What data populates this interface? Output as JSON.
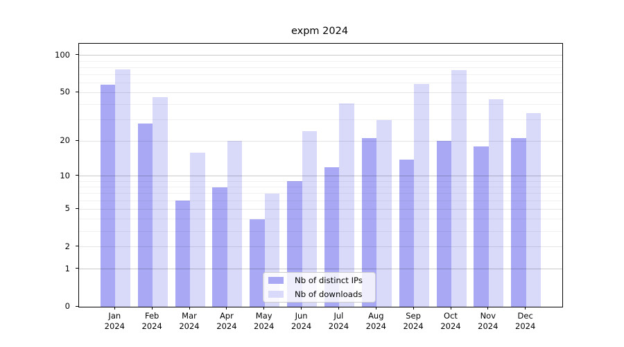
{
  "chart_data": {
    "type": "bar",
    "title": "expm 2024",
    "categories": [
      "Jan",
      "Feb",
      "Mar",
      "Apr",
      "May",
      "Jun",
      "Jul",
      "Aug",
      "Sep",
      "Oct",
      "Nov",
      "Dec"
    ],
    "xlabel_year": "2024",
    "series": [
      {
        "name": "Nb of distinct IPs",
        "color": "#a8a8f5",
        "values": [
          58,
          28,
          6,
          8,
          4,
          9,
          12,
          21,
          14,
          20,
          18,
          21
        ]
      },
      {
        "name": "Nb of downloads",
        "color": "#d9d9fa",
        "values": [
          77,
          46,
          16,
          20,
          7,
          24,
          41,
          30,
          59,
          76,
          44,
          34
        ]
      }
    ],
    "xlabel": "",
    "ylabel": "",
    "yscale": "log1p",
    "ylim": [
      0,
      125
    ],
    "ytick_values": [
      0,
      1,
      2,
      5,
      10,
      20,
      50,
      100
    ],
    "ytick_labels": [
      "0",
      "1",
      "2",
      "5",
      "10",
      "20",
      "50",
      "100"
    ],
    "grid": "on",
    "grid_major_values": [
      1,
      10,
      100
    ],
    "grid_mid_values": [
      2,
      5,
      20,
      50
    ],
    "grid_minor_values": [
      3,
      4,
      6,
      7,
      8,
      9,
      30,
      40,
      60,
      70,
      80,
      90
    ],
    "legend_position": "lower center inside"
  }
}
